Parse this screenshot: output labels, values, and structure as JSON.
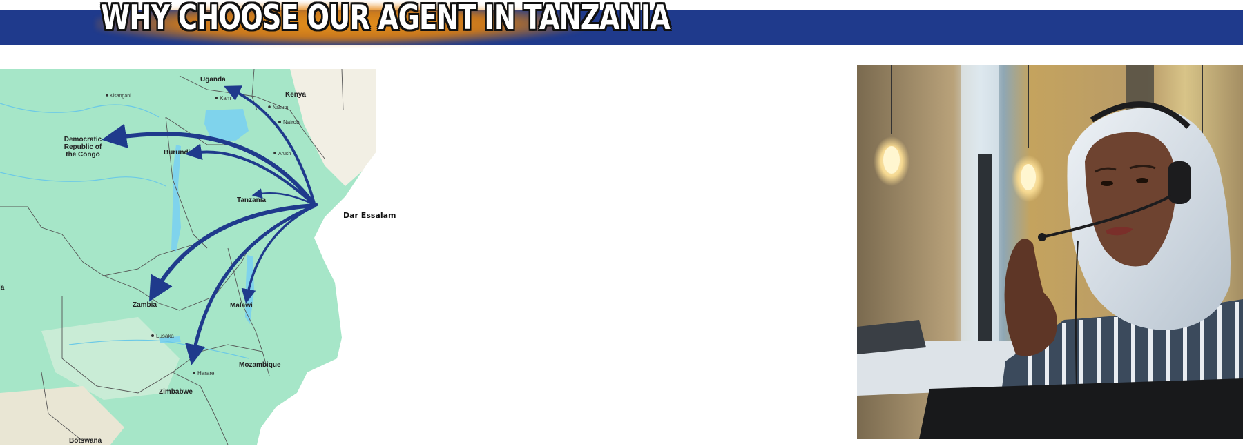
{
  "header": {
    "title": "WHY CHOOSE OUR AGENT IN TANZANIA",
    "bar_color": "#1f3a8c",
    "glow_color": "#f0961a"
  },
  "map": {
    "hub_label": "Dar Essalam",
    "country_labels": {
      "uganda": "Uganda",
      "kenya": "Kenya",
      "drc": "Democratic Republic of the Congo",
      "burundi": "Burundi",
      "tanzania": "Tanzania",
      "zambia": "Zambia",
      "malawi": "Malawi",
      "mozambique": "Mozambique",
      "zimbabwe": "Zimbabwe",
      "botswana": "Botswana",
      "angola_partial": "la"
    },
    "city_labels": {
      "kisangani": "Kisangani",
      "kampala": "Kam",
      "nakuru": "Nakuru",
      "nairobi": "Nairobi",
      "arusha": "Arush",
      "lusaka": "Lusaka",
      "harare": "Harare"
    },
    "land_color": "#9fe3c2",
    "water_color": "#7fd3ec",
    "arrow_color": "#1f3a8c",
    "arrow_destinations": [
      "Uganda",
      "Democratic Republic of the Congo",
      "Burundi",
      "Tanzania",
      "Zambia",
      "Malawi",
      "Zimbabwe"
    ]
  },
  "photo": {
    "subject_icon": "call-center-agent-photo"
  }
}
